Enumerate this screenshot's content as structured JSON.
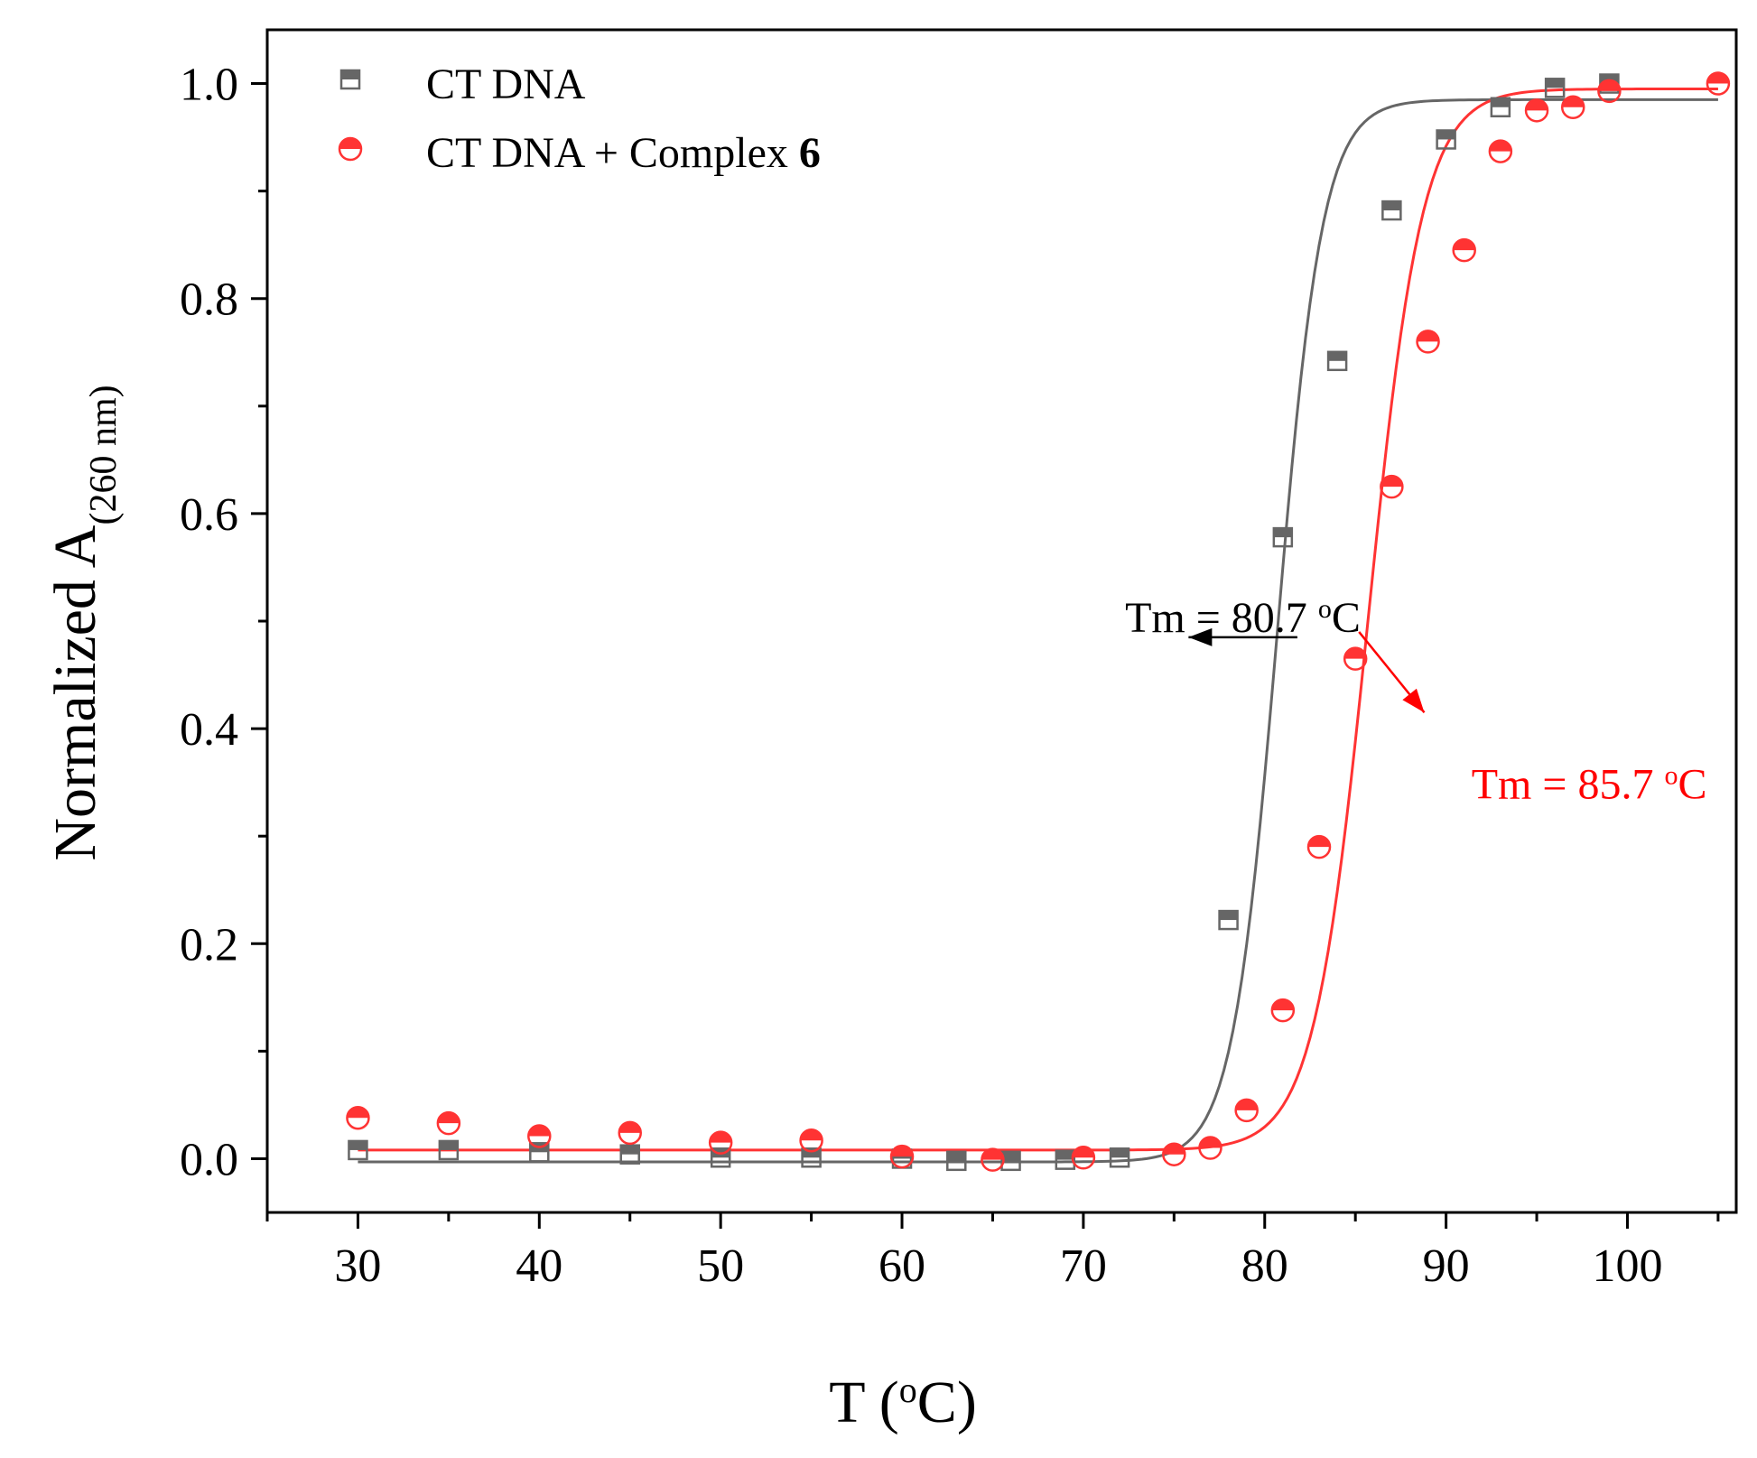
{
  "chart_data": {
    "type": "scatter",
    "title": "",
    "xlabel": "T (",
    "xlabel_unit": "o",
    "xlabel_tail": "C)",
    "ylabel": "Normalized A",
    "ylabel_sub": "(260 nm)",
    "xlim": [
      25,
      106
    ],
    "ylim": [
      -0.05,
      1.05
    ],
    "x_ticks": [
      30,
      40,
      50,
      60,
      70,
      80,
      90,
      100
    ],
    "x_tick_labels": [
      "30",
      "40",
      "50",
      "60",
      "70",
      "80",
      "90",
      "100"
    ],
    "y_ticks": [
      0.0,
      0.2,
      0.4,
      0.6,
      0.8,
      1.0
    ],
    "y_tick_labels": [
      "0.0",
      "0.2",
      "0.4",
      "0.6",
      "0.8",
      "1.0"
    ],
    "grid": false,
    "legend_position": "top-left",
    "series": [
      {
        "name": "CT DNA",
        "name_bold_suffix": "",
        "color": "#666666",
        "marker": "square-half",
        "x": [
          30,
          35,
          40,
          45,
          50,
          55,
          60,
          63,
          66,
          69,
          72,
          78,
          81,
          84,
          87,
          90,
          93,
          96,
          99
        ],
        "y": [
          0.008,
          0.008,
          0.006,
          0.004,
          0.001,
          0.001,
          0.0,
          -0.002,
          -0.002,
          -0.001,
          0.001,
          0.222,
          0.578,
          0.742,
          0.882,
          0.948,
          0.978,
          0.996,
          1.0
        ],
        "fit": {
          "bottom": -0.003,
          "top": 0.985,
          "tm": 80.7,
          "slope": 1.25
        }
      },
      {
        "name": "CT DNA + Complex ",
        "name_bold_suffix": "6",
        "color": "#ff3333",
        "marker": "circle-half",
        "x": [
          30,
          35,
          40,
          45,
          50,
          55,
          60,
          65,
          70,
          75,
          77,
          79,
          81,
          83,
          85,
          87,
          89,
          91,
          93,
          95,
          97,
          99,
          105
        ],
        "y": [
          0.038,
          0.033,
          0.021,
          0.024,
          0.015,
          0.017,
          0.002,
          -0.001,
          0.001,
          0.004,
          0.01,
          0.045,
          0.138,
          0.29,
          0.465,
          0.625,
          0.76,
          0.845,
          0.937,
          0.975,
          0.978,
          0.993,
          1.0
        ],
        "fit": {
          "bottom": 0.008,
          "top": 0.995,
          "tm": 85.7,
          "slope": 1.5
        }
      }
    ],
    "annotations": [
      {
        "text": "Tm = 80.7 ",
        "unit_sup": "o",
        "unit_tail": "C",
        "color": "#000000",
        "arrow_from": [
          81.8,
          0.485
        ],
        "arrow_to": [
          75.8,
          0.485
        ],
        "anchor": [
          72.3,
          0.49
        ]
      },
      {
        "text": "Tm = 85.7 ",
        "unit_sup": "o",
        "unit_tail": "C",
        "color": "#ff0000",
        "arrow_from": [
          85.2,
          0.49
        ],
        "arrow_to": [
          88.8,
          0.415
        ],
        "anchor": [
          91.4,
          0.335
        ]
      }
    ]
  }
}
